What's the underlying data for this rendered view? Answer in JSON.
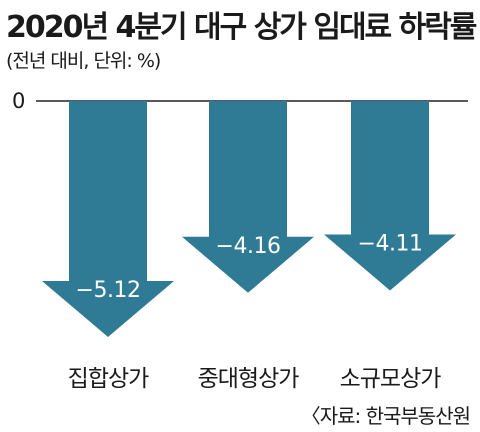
{
  "title": "2020년 4분기 대구 상가 임대료 하락률",
  "subtitle": "(전년 대비, 단위: %)",
  "source": "〈자료: 한국부동산원",
  "colors": {
    "arrow": "#2f7a94",
    "axis": "#222222",
    "label_text": "#ffffff"
  },
  "chart_data": {
    "type": "bar",
    "categories": [
      "집합상가",
      "중대형상가",
      "소규모상가"
    ],
    "values": [
      -5.12,
      -4.16,
      -4.11
    ],
    "value_labels": [
      "−5.12",
      "−4.16",
      "−4.11"
    ],
    "y_tick_labels": [
      "0"
    ],
    "ylim": [
      -6.0,
      0
    ],
    "xlabel": "",
    "ylabel": "",
    "grid": false,
    "legend": "none"
  }
}
